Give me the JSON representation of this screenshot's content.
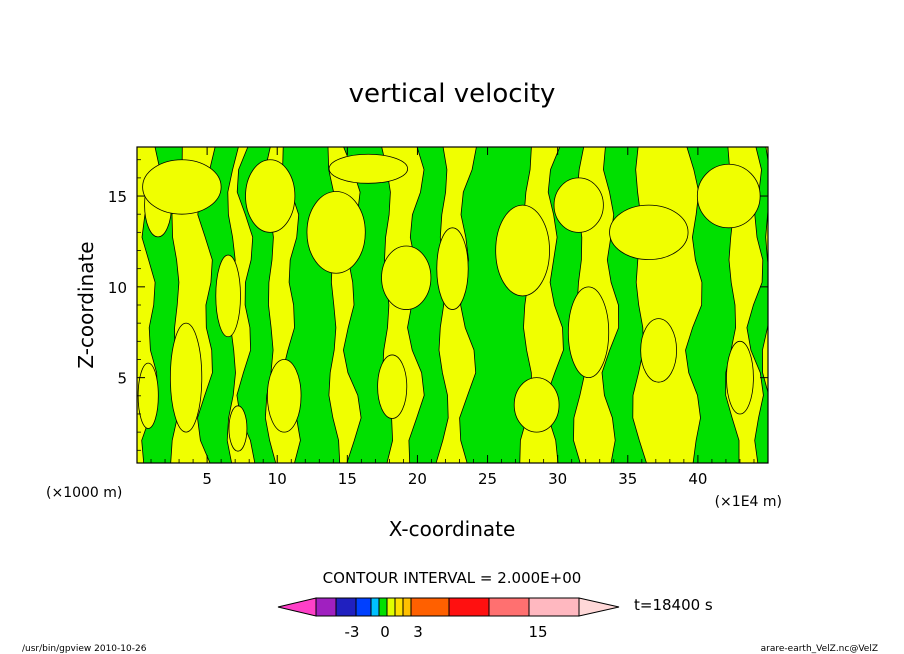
{
  "chart_data": {
    "type": "heatmap",
    "title": "vertical velocity",
    "xlabel": "X-coordinate",
    "ylabel": "Z-coordinate",
    "x_unit_left": "(×1000 m)",
    "x_unit_right": "(×1E4 m)",
    "xlim": [
      0,
      45
    ],
    "ylim": [
      0.3,
      17.7
    ],
    "x_ticks": [
      "5",
      "10",
      "15",
      "20",
      "25",
      "30",
      "35",
      "40"
    ],
    "x_tick_values": [
      5,
      10,
      15,
      20,
      25,
      30,
      35,
      40
    ],
    "y_ticks": [
      "5",
      "10",
      "15"
    ],
    "y_tick_values": [
      5,
      10,
      15
    ],
    "contour_interval_label": "CONTOUR INTERVAL = 2.000E+00",
    "contour_interval": 2.0,
    "fill_colors": {
      "positive": "#f0ff00",
      "negative": "#00e000"
    },
    "colorbar": {
      "colors": [
        "#ff40c8",
        "#a020c0",
        "#2020c0",
        "#0040ff",
        "#00c0ff",
        "#00e000",
        "#e0ff00",
        "#ffe000",
        "#ffc000",
        "#ff6000",
        "#ff1010",
        "#ff7070",
        "#ffb8c0",
        "#ffd8d8"
      ],
      "tick_labels": [
        "-3",
        "0",
        "3",
        "15"
      ],
      "time_label": "t=18400 s"
    },
    "regions": [
      {
        "x": 0.8,
        "z": 4,
        "w": 0.9,
        "h": 3.6,
        "sign": "positive"
      },
      {
        "x": 1.5,
        "z": 14.5,
        "w": 1.2,
        "h": 3.5,
        "sign": "positive"
      },
      {
        "x": 3.5,
        "z": 5,
        "w": 1.4,
        "h": 6,
        "sign": "positive"
      },
      {
        "x": 3.2,
        "z": 15.5,
        "w": 3.5,
        "h": 3.0,
        "sign": "positive"
      },
      {
        "x": 6.5,
        "z": 9.5,
        "w": 1.1,
        "h": 4.5,
        "sign": "positive"
      },
      {
        "x": 7.2,
        "z": 2.2,
        "w": 0.8,
        "h": 2.5,
        "sign": "positive"
      },
      {
        "x": 10.5,
        "z": 4,
        "w": 1.5,
        "h": 4.0,
        "sign": "positive"
      },
      {
        "x": 9.5,
        "z": 15,
        "w": 2.2,
        "h": 4.0,
        "sign": "positive"
      },
      {
        "x": 14.2,
        "z": 13,
        "w": 2.6,
        "h": 4.5,
        "sign": "positive"
      },
      {
        "x": 16.5,
        "z": 16.5,
        "w": 3.5,
        "h": 1.6,
        "sign": "positive"
      },
      {
        "x": 19.2,
        "z": 10.5,
        "w": 2.2,
        "h": 3.5,
        "sign": "positive"
      },
      {
        "x": 18.2,
        "z": 4.5,
        "w": 1.3,
        "h": 3.5,
        "sign": "positive"
      },
      {
        "x": 22.5,
        "z": 11,
        "w": 1.4,
        "h": 4.5,
        "sign": "positive"
      },
      {
        "x": 27.5,
        "z": 12,
        "w": 2.4,
        "h": 5.0,
        "sign": "positive"
      },
      {
        "x": 28.5,
        "z": 3.5,
        "w": 2.0,
        "h": 3.0,
        "sign": "positive"
      },
      {
        "x": 31.5,
        "z": 14.5,
        "w": 2.2,
        "h": 3.0,
        "sign": "positive"
      },
      {
        "x": 32.2,
        "z": 7.5,
        "w": 1.8,
        "h": 5.0,
        "sign": "positive"
      },
      {
        "x": 36.5,
        "z": 13,
        "w": 3.5,
        "h": 3.0,
        "sign": "positive"
      },
      {
        "x": 37.2,
        "z": 6.5,
        "w": 1.6,
        "h": 3.5,
        "sign": "positive"
      },
      {
        "x": 42.2,
        "z": 15,
        "w": 2.8,
        "h": 3.5,
        "sign": "positive"
      },
      {
        "x": 43.0,
        "z": 5.0,
        "w": 1.2,
        "h": 4.0,
        "sign": "positive"
      }
    ]
  },
  "footer": {
    "left": "/usr/bin/gpview   2010-10-26",
    "right": "arare-earth_VelZ.nc@VelZ"
  }
}
